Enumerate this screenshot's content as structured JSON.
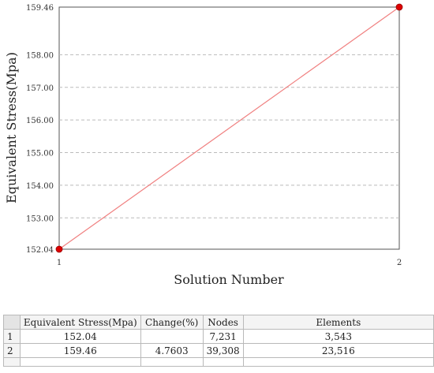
{
  "chart_data": {
    "type": "line",
    "x": [
      1,
      2
    ],
    "y": [
      152.04,
      159.46
    ],
    "xticks": [
      "1",
      "2"
    ],
    "yticks": [
      "152.04",
      "153.00",
      "154.00",
      "155.00",
      "156.00",
      "157.00",
      "158.00",
      "159.46"
    ],
    "xlabel": "Solution Number",
    "ylabel": "Equivalent Stress(Mpa)",
    "xlim": [
      1,
      2
    ],
    "ylim": [
      152.04,
      159.46
    ],
    "grid": "horizontal-dashed",
    "line_color": "#f08080",
    "marker_color": "#dd0000"
  },
  "table": {
    "headers": [
      "Equivalent Stress(Mpa)",
      "Change(%)",
      "Nodes",
      "Elements"
    ],
    "rows": [
      {
        "num": "1",
        "stress": "152.04",
        "change": "",
        "nodes": "7,231",
        "elements": "3,543"
      },
      {
        "num": "2",
        "stress": "159.46",
        "change": "4.7603",
        "nodes": "39,308",
        "elements": "23,516"
      }
    ]
  }
}
